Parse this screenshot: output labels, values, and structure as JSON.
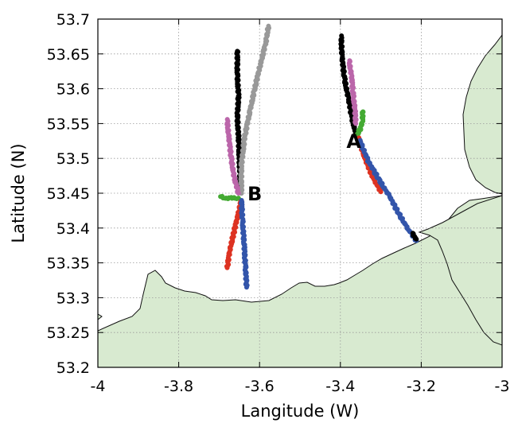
{
  "chart_data": {
    "type": "scatter",
    "title": "",
    "xlabel": "Langitude (W)",
    "ylabel": "Latitude (N)",
    "xlim": [
      -4,
      -3
    ],
    "ylim": [
      53.2,
      53.7
    ],
    "xticks": [
      -4,
      -3.8,
      -3.6,
      -3.4,
      -3.2,
      -3
    ],
    "xtick_labels": [
      "-4",
      "-3.8",
      "-3.6",
      "-3.4",
      "-3.2",
      "-3"
    ],
    "yticks": [
      53.2,
      53.25,
      53.3,
      53.35,
      53.4,
      53.45,
      53.5,
      53.55,
      53.6,
      53.65,
      53.7
    ],
    "ytick_labels": [
      "53.2",
      "53.25",
      "53.3",
      "53.35",
      "53.4",
      "53.45",
      "53.5",
      "53.55",
      "53.6",
      "53.65",
      "53.7"
    ],
    "grid": true,
    "land_color": "#d8ead0",
    "annotations": [
      {
        "text": "A",
        "x": -3.385,
        "y": 53.515
      },
      {
        "text": "B",
        "x": -3.63,
        "y": 53.44
      }
    ],
    "series": [
      {
        "color": "#000000",
        "points": [
          [
            -3.655,
            53.655
          ],
          [
            -3.655,
            53.62
          ],
          [
            -3.652,
            53.59
          ],
          [
            -3.655,
            53.56
          ],
          [
            -3.652,
            53.53
          ],
          [
            -3.65,
            53.5
          ],
          [
            -3.648,
            53.47
          ],
          [
            -3.645,
            53.45
          ]
        ]
      },
      {
        "color": "#999999",
        "points": [
          [
            -3.578,
            53.69
          ],
          [
            -3.585,
            53.665
          ],
          [
            -3.598,
            53.635
          ],
          [
            -3.612,
            53.6
          ],
          [
            -3.625,
            53.565
          ],
          [
            -3.637,
            53.53
          ],
          [
            -3.645,
            53.49
          ],
          [
            -3.645,
            53.45
          ]
        ]
      },
      {
        "color": "#bb66aa",
        "points": [
          [
            -3.68,
            53.555
          ],
          [
            -3.676,
            53.53
          ],
          [
            -3.67,
            53.5
          ],
          [
            -3.662,
            53.47
          ],
          [
            -3.652,
            53.45
          ]
        ]
      },
      {
        "color": "#44aa33",
        "points": [
          [
            -3.697,
            53.445
          ],
          [
            -3.683,
            53.443
          ],
          [
            -3.668,
            53.443
          ],
          [
            -3.652,
            53.443
          ]
        ]
      },
      {
        "color": "#dd3322",
        "points": [
          [
            -3.645,
            53.44
          ],
          [
            -3.655,
            53.415
          ],
          [
            -3.665,
            53.39
          ],
          [
            -3.673,
            53.37
          ],
          [
            -3.68,
            53.343
          ]
        ]
      },
      {
        "color": "#3355aa",
        "points": [
          [
            -3.645,
            53.44
          ],
          [
            -3.642,
            53.41
          ],
          [
            -3.638,
            53.375
          ],
          [
            -3.635,
            53.345
          ],
          [
            -3.632,
            53.315
          ]
        ]
      },
      {
        "color": "#000000",
        "points": [
          [
            -3.398,
            53.675
          ],
          [
            -3.396,
            53.645
          ],
          [
            -3.39,
            53.615
          ],
          [
            -3.38,
            53.585
          ],
          [
            -3.372,
            53.56
          ],
          [
            -3.364,
            53.54
          ],
          [
            -3.358,
            53.53
          ]
        ]
      },
      {
        "color": "#bb66aa",
        "points": [
          [
            -3.378,
            53.64
          ],
          [
            -3.372,
            53.615
          ],
          [
            -3.368,
            53.59
          ],
          [
            -3.364,
            53.57
          ],
          [
            -3.362,
            53.55
          ]
        ]
      },
      {
        "color": "#44aa33",
        "points": [
          [
            -3.345,
            53.568
          ],
          [
            -3.345,
            53.555
          ],
          [
            -3.35,
            53.543
          ],
          [
            -3.358,
            53.535
          ]
        ]
      },
      {
        "color": "#dd3322",
        "points": [
          [
            -3.355,
            53.53
          ],
          [
            -3.345,
            53.51
          ],
          [
            -3.333,
            53.49
          ],
          [
            -3.317,
            53.47
          ],
          [
            -3.3,
            53.452
          ]
        ]
      },
      {
        "color": "#3355aa",
        "points": [
          [
            -3.352,
            53.525
          ],
          [
            -3.33,
            53.495
          ],
          [
            -3.305,
            53.47
          ],
          [
            -3.278,
            53.445
          ],
          [
            -3.255,
            53.42
          ],
          [
            -3.232,
            53.398
          ],
          [
            -3.212,
            53.382
          ]
        ]
      },
      {
        "color": "#000000",
        "points": [
          [
            -3.222,
            53.392
          ],
          [
            -3.217,
            53.388
          ],
          [
            -3.212,
            53.384
          ]
        ]
      }
    ]
  }
}
